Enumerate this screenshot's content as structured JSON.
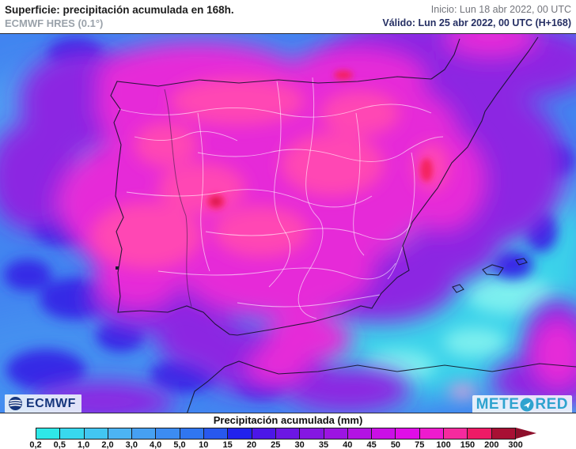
{
  "header": {
    "title": "Superficie: precipitación acumulada en 168h.",
    "subtitle": "ECMWF HRES (0.1°)",
    "init": "Inicio: Lun 18 abr 2022, 00 UTC",
    "valid": "Válido: Lun 25 abr 2022, 00 UTC (H+168)"
  },
  "logos": {
    "ecmwf": "ECMWF",
    "meteored_left": "METE",
    "meteored_right": "RED"
  },
  "legend": {
    "title": "Precipitación acumulada (mm)",
    "tick_labels": [
      "0,2",
      "0,5",
      "1,0",
      "2,0",
      "3,0",
      "4,0",
      "5,0",
      "10",
      "15",
      "20",
      "25",
      "30",
      "35",
      "40",
      "45",
      "50",
      "75",
      "100",
      "150",
      "200",
      "300"
    ],
    "cell_colors": [
      "#2ee8e8",
      "#38d8ee",
      "#42c6f2",
      "#4cb4f4",
      "#46a0f2",
      "#3c8cf2",
      "#3076f0",
      "#2858ee",
      "#2222ec",
      "#4c16e8",
      "#6c16e4",
      "#8516e2",
      "#9c14e2",
      "#b312e4",
      "#ca0fe6",
      "#e00de8",
      "#ee1bce",
      "#f52a9e",
      "#ee1a66",
      "#a81034"
    ],
    "arrow_color": "#8d0f2b"
  },
  "colors": {
    "title_text": "#1c1c1c",
    "subtitle_text": "#9aa2aa",
    "init_text": "#73757c",
    "valid_text": "#252f63",
    "ecmwf_navy": "#16367c",
    "meteored_teal": "#2fa3cf",
    "sea_blue": "#4285f0",
    "core_magenta": "#e62bd8",
    "coast_cyan": "#3ad2ea"
  }
}
